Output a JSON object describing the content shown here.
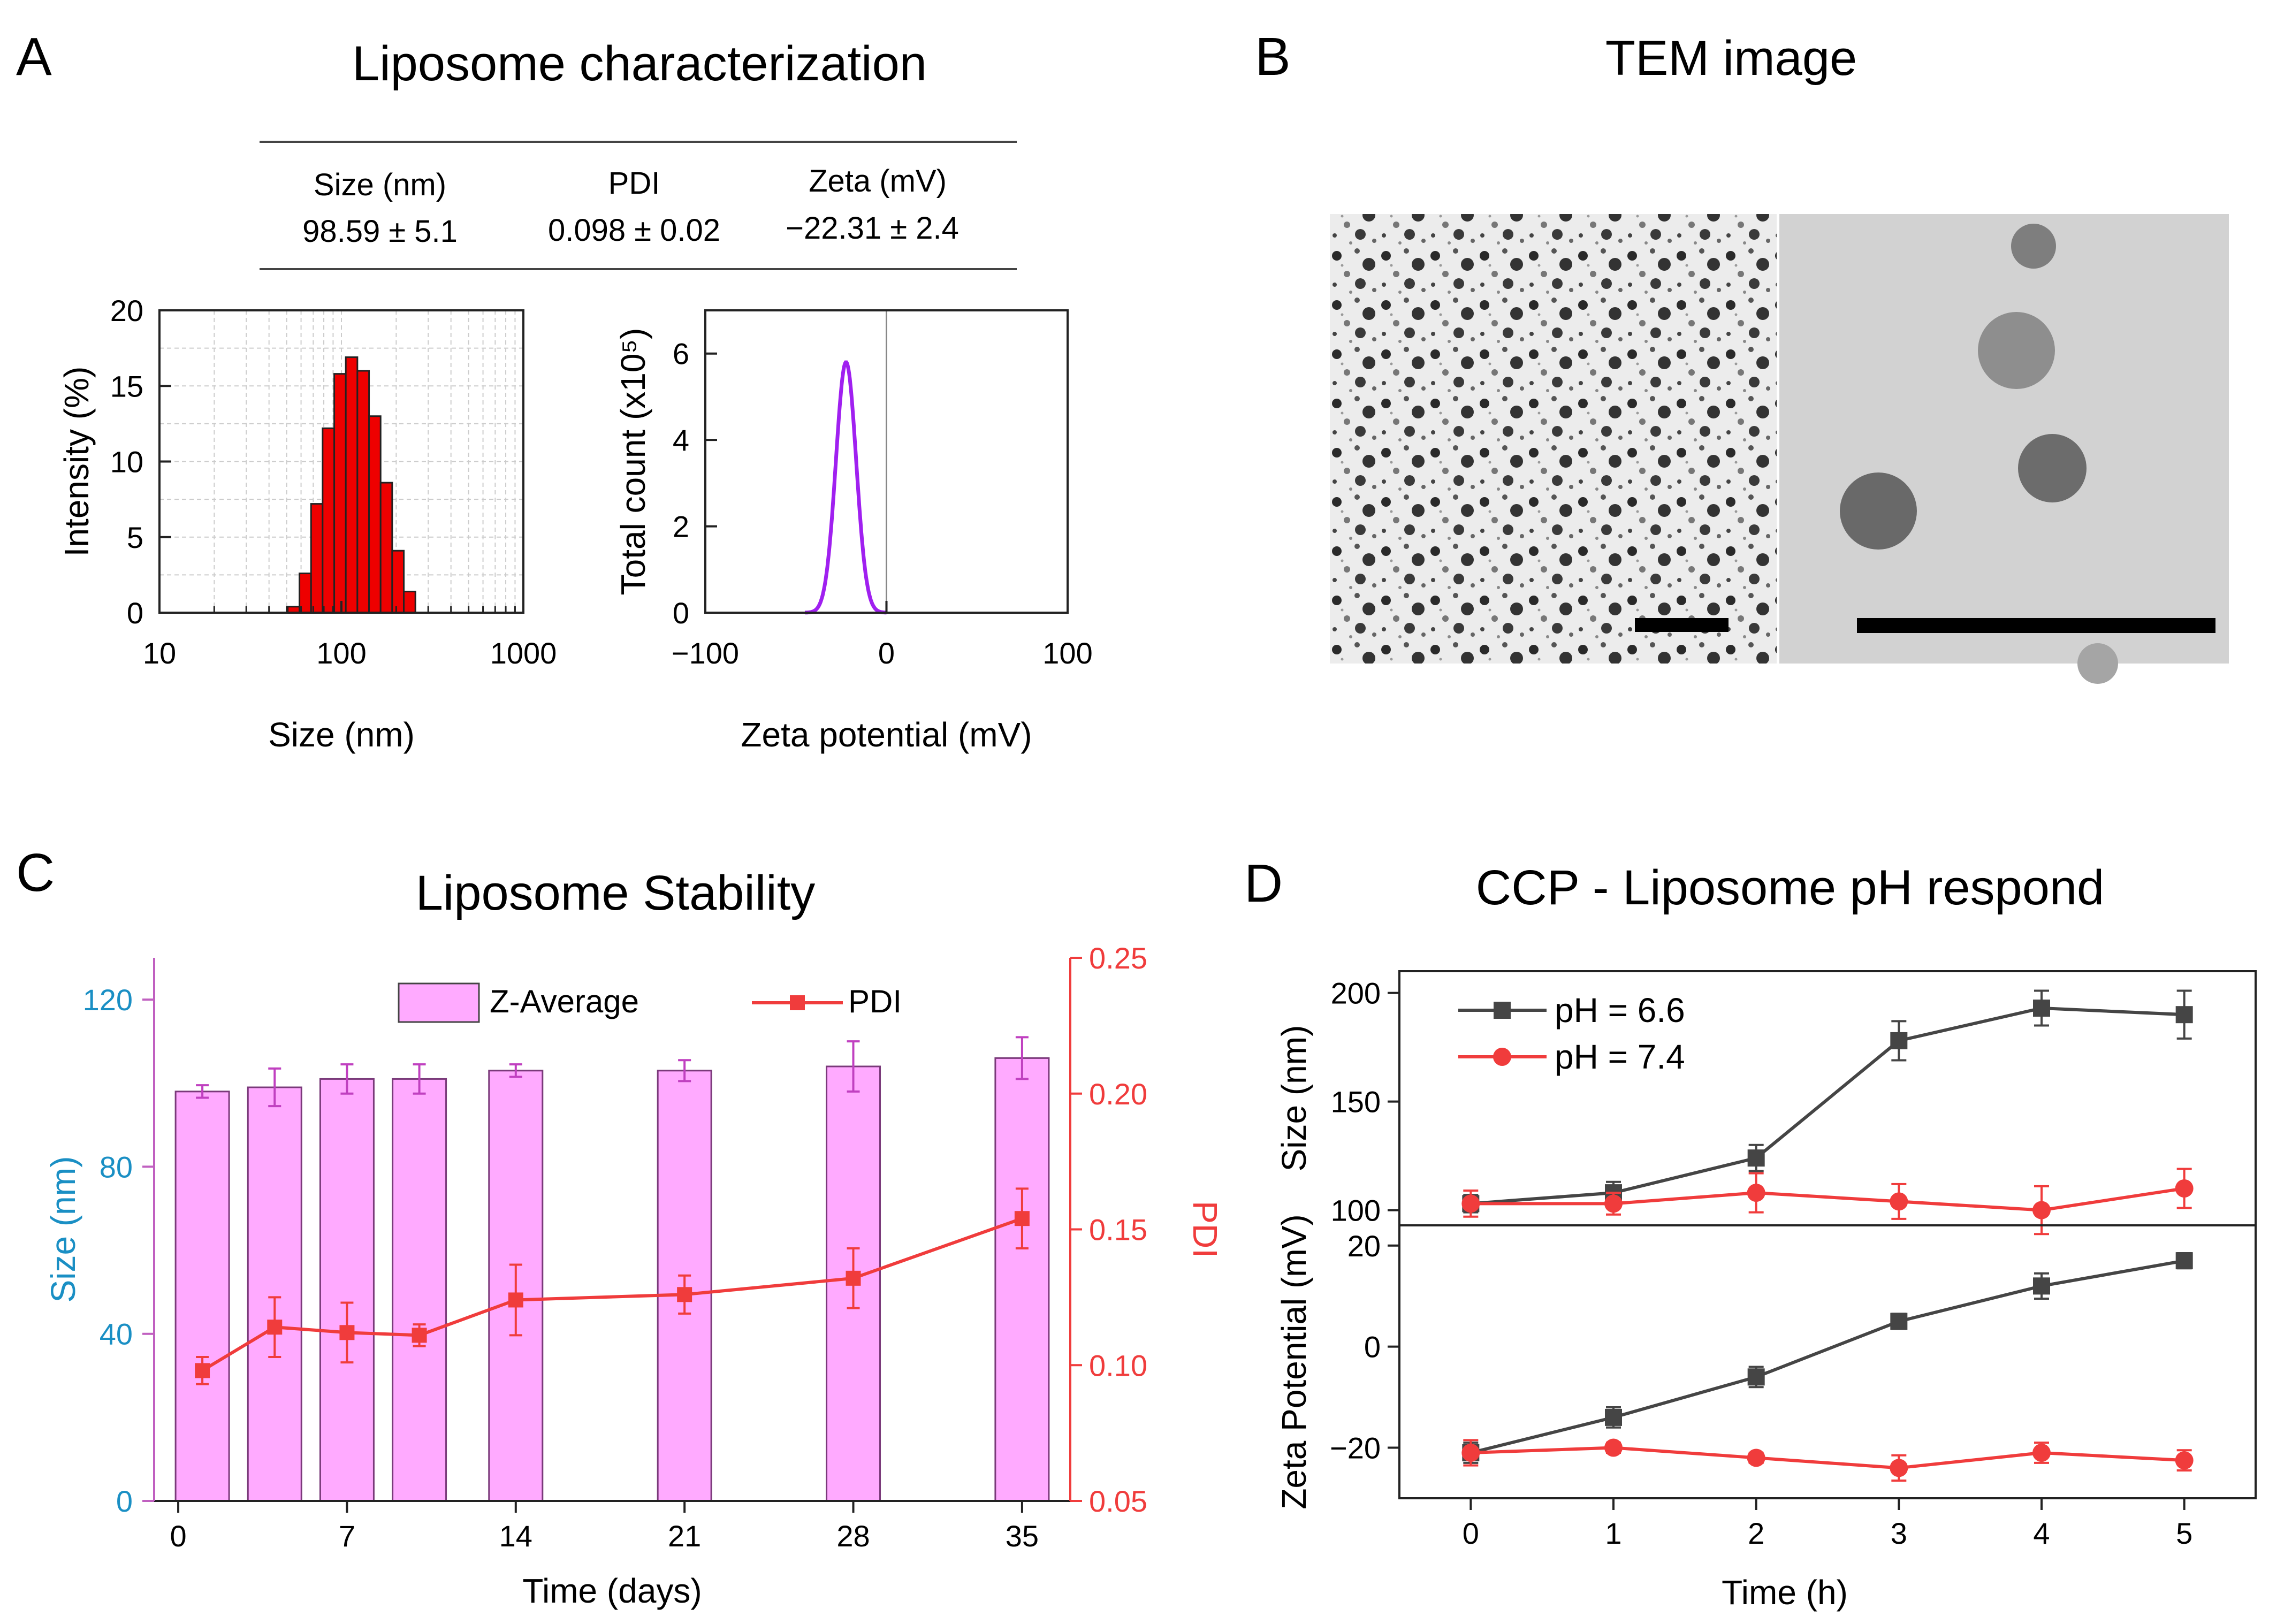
{
  "panels": {
    "a": {
      "letter": "A",
      "title": "Liposome characterization"
    },
    "b": {
      "letter": "B",
      "title": "TEM image"
    },
    "c": {
      "letter": "C",
      "title": "Liposome Stability"
    },
    "d": {
      "letter": "D",
      "title": "CCP - Liposome pH respond"
    }
  },
  "summary_table": {
    "headers": [
      "Size (nm)",
      "PDI",
      "Zeta (mV)"
    ],
    "values": [
      "98.59 ± 5.1",
      "0.098 ± 0.02",
      "−22.31 ± 2.4"
    ]
  },
  "colors": {
    "bar_red": "#ee0000",
    "zeta_purple": "#a020f0",
    "stability_bar": "#ffaaff",
    "stability_bar_edge": "#7a3a7a",
    "pdi_red": "#f03c3c",
    "size_axis_blue": "#1a8fc4",
    "ph66": "#454545",
    "ph74": "#f03c3c",
    "grid": "#cccccc"
  },
  "chart_data": [
    {
      "id": "size-distribution",
      "type": "bar",
      "x_scale": "log",
      "xlabel": "Size (nm)",
      "ylabel": "Intensity (%)",
      "xlim": [
        10,
        1000
      ],
      "ylim": [
        0,
        20
      ],
      "xticks": [
        "10",
        "100",
        "1000"
      ],
      "yticks": [
        "0",
        "5",
        "10",
        "15",
        "20"
      ],
      "grid": true,
      "bins": [
        {
          "from": 50.7,
          "to": 58.8,
          "value": 0.4
        },
        {
          "from": 58.8,
          "to": 68.1,
          "value": 2.6
        },
        {
          "from": 68.1,
          "to": 78.8,
          "value": 7.2
        },
        {
          "from": 78.8,
          "to": 91.3,
          "value": 12.2
        },
        {
          "from": 91.3,
          "to": 105.7,
          "value": 15.8
        },
        {
          "from": 105.7,
          "to": 122.4,
          "value": 16.9
        },
        {
          "from": 122.4,
          "to": 141.8,
          "value": 16.0
        },
        {
          "from": 141.8,
          "to": 164.2,
          "value": 13.0
        },
        {
          "from": 164.2,
          "to": 190.1,
          "value": 8.6
        },
        {
          "from": 190.1,
          "to": 220.2,
          "value": 4.1
        },
        {
          "from": 220.2,
          "to": 255.0,
          "value": 1.4
        }
      ]
    },
    {
      "id": "zeta-distribution",
      "type": "line",
      "xlabel": "Zeta potential (mV)",
      "ylabel": "Total count (x10⁵)",
      "xlim": [
        -100,
        100
      ],
      "ylim": [
        0,
        7
      ],
      "xticks": [
        "−100",
        "0",
        "100"
      ],
      "yticks": [
        "0",
        "2",
        "4",
        "6"
      ],
      "reference_line_x": 0,
      "peak": {
        "x": -22.31,
        "y": 5.8,
        "sigma": 5.6,
        "range": [
          -45,
          0
        ]
      }
    },
    {
      "id": "stability",
      "type": "bar",
      "title": "Liposome Stability",
      "xlabel": "Time (days)",
      "ylabel_left": "Size (nm)",
      "ylabel_right": "PDI",
      "xlim": [
        -1,
        37
      ],
      "ylim_left": [
        0,
        130
      ],
      "ylim_right": [
        0.05,
        0.25
      ],
      "xticks": [
        "0",
        "7",
        "14",
        "21",
        "28",
        "35"
      ],
      "yticks_left": [
        "0",
        "40",
        "80",
        "120"
      ],
      "yticks_right": [
        "0.05",
        "0.10",
        "0.15",
        "0.20",
        "0.25"
      ],
      "legend": [
        "Z-Average",
        "PDI"
      ],
      "days": [
        1,
        4,
        7,
        10,
        14,
        21,
        28,
        35
      ],
      "series": [
        {
          "name": "Z-Average",
          "values": [
            98,
            99,
            101,
            101,
            103,
            103,
            104,
            106
          ],
          "errors": [
            1.5,
            4.5,
            3.5,
            3.5,
            1.5,
            2.5,
            6,
            5
          ]
        },
        {
          "name": "PDI",
          "values": [
            0.098,
            0.114,
            0.112,
            0.111,
            0.124,
            0.126,
            0.132,
            0.154
          ],
          "errors": [
            0.005,
            0.011,
            0.011,
            0.004,
            0.013,
            0.007,
            0.011,
            0.011
          ]
        }
      ]
    },
    {
      "id": "ph-size",
      "type": "line",
      "ylabel": "Size (nm)",
      "x": [
        0,
        1,
        2,
        3,
        4,
        5
      ],
      "xlim": [
        -0.5,
        5.5
      ],
      "ylim": [
        93,
        210
      ],
      "yticks": [
        "100",
        "150",
        "200"
      ],
      "legend": [
        "pH = 6.6",
        "pH = 7.4"
      ],
      "series": [
        {
          "name": "pH = 6.6",
          "values": [
            103,
            108,
            124,
            178,
            193,
            190
          ],
          "errors": [
            4,
            5,
            6,
            9,
            8,
            11
          ]
        },
        {
          "name": "pH = 7.4",
          "values": [
            103,
            103,
            108,
            104,
            100,
            110
          ],
          "errors": [
            6,
            5,
            9,
            8,
            11,
            9
          ]
        }
      ]
    },
    {
      "id": "ph-zeta",
      "type": "line",
      "xlabel": "Time (h)",
      "ylabel": "Zeta Potential (mV)",
      "x": [
        0,
        1,
        2,
        3,
        4,
        5
      ],
      "xlim": [
        -0.5,
        5.5
      ],
      "ylim": [
        -30,
        24
      ],
      "xticks": [
        "0",
        "1",
        "2",
        "3",
        "4",
        "5"
      ],
      "yticks": [
        "−20",
        "0",
        "20"
      ],
      "series": [
        {
          "name": "pH = 6.6",
          "values": [
            -21,
            -14,
            -6,
            5,
            12,
            17
          ],
          "errors": [
            2,
            2,
            2,
            1.5,
            2.5,
            1.5
          ]
        },
        {
          "name": "pH = 7.4",
          "values": [
            -21,
            -20,
            -22,
            -24,
            -21,
            -22.5
          ],
          "errors": [
            2.5,
            1,
            1,
            2.5,
            2,
            2
          ]
        }
      ]
    }
  ]
}
